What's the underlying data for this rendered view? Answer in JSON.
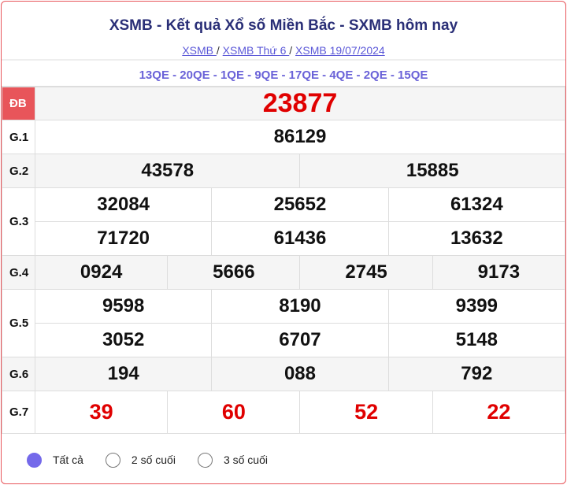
{
  "header": {
    "title": "XSMB - Kết quả Xổ số Miền Bắc - SXMB hôm nay",
    "breadcrumbs": [
      "XSMB ",
      "XSMB Thứ 6 ",
      "XSMB 19/07/2024"
    ],
    "separator": "/"
  },
  "codes": "13QE - 20QE - 1QE - 9QE - 17QE - 4QE - 2QE - 15QE",
  "prizes": {
    "db": {
      "label": "ĐB",
      "values": [
        "23877"
      ]
    },
    "g1": {
      "label": "G.1",
      "values": [
        "86129"
      ]
    },
    "g2": {
      "label": "G.2",
      "values": [
        "43578",
        "15885"
      ]
    },
    "g3": {
      "label": "G.3",
      "values": [
        "32084",
        "25652",
        "61324",
        "71720",
        "61436",
        "13632"
      ]
    },
    "g4": {
      "label": "G.4",
      "values": [
        "0924",
        "5666",
        "2745",
        "9173"
      ]
    },
    "g5": {
      "label": "G.5",
      "values": [
        "9598",
        "8190",
        "9399",
        "3052",
        "6707",
        "5148"
      ]
    },
    "g6": {
      "label": "G.6",
      "values": [
        "194",
        "088",
        "792"
      ]
    },
    "g7": {
      "label": "G.7",
      "values": [
        "39",
        "60",
        "52",
        "22"
      ]
    }
  },
  "filters": [
    {
      "label": "Tất cả",
      "selected": true
    },
    {
      "label": "2 số cuối",
      "selected": false
    },
    {
      "label": "3 số cuối",
      "selected": false
    }
  ],
  "colors": {
    "accent": "#e8555a",
    "special": "#e00000",
    "title": "#2a2f77",
    "radio": "#7469ea"
  }
}
